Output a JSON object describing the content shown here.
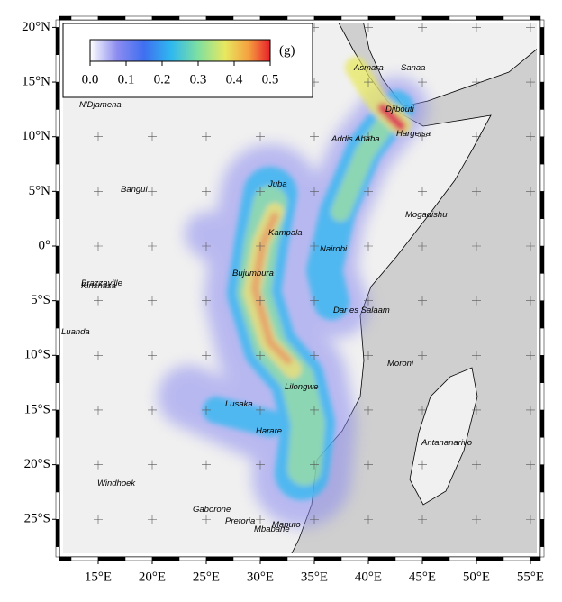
{
  "map": {
    "lat_ticks": [
      {
        "value": 20,
        "label": "20°N"
      },
      {
        "value": 15,
        "label": "15°N"
      },
      {
        "value": 10,
        "label": "10°N"
      },
      {
        "value": 5,
        "label": "5°N"
      },
      {
        "value": 0,
        "label": "0°"
      },
      {
        "value": -5,
        "label": "5°S"
      },
      {
        "value": -10,
        "label": "10°S"
      },
      {
        "value": -15,
        "label": "15°S"
      },
      {
        "value": -20,
        "label": "20°S"
      },
      {
        "value": -25,
        "label": "25°S"
      }
    ],
    "lon_ticks": [
      {
        "value": 15,
        "label": "15°E"
      },
      {
        "value": 20,
        "label": "20°E"
      },
      {
        "value": 25,
        "label": "25°E"
      },
      {
        "value": 30,
        "label": "30°E"
      },
      {
        "value": 35,
        "label": "35°E"
      },
      {
        "value": 40,
        "label": "40°E"
      },
      {
        "value": 45,
        "label": "45°E"
      },
      {
        "value": 50,
        "label": "50°E"
      },
      {
        "value": 55,
        "label": "55°E"
      }
    ],
    "colorbar": {
      "unit": "(g)",
      "lim": [
        0,
        0.5
      ],
      "ticks": [
        {
          "value": 0,
          "label": "0.0"
        },
        0.1,
        0.2,
        0.3,
        0.4,
        0.5
      ]
    },
    "cities": [
      "Asmara",
      "Sanaa",
      "N'Djamena",
      "Djibouti",
      "Hargeisa",
      "Addis Ababa",
      "Juba",
      "Bangui",
      "Mogadishu",
      "Kampala",
      "Nairobi",
      "Bujumbura",
      "Brazzaville",
      "Kinshasa",
      "Dar es Salaam",
      "Luanda",
      "Moroni",
      "Lilongwe",
      "Lusaka",
      "Harare",
      "Antananarivo",
      "Windhoek",
      "Gaborone",
      "Pretoria",
      "Maputo",
      "Mbabane"
    ]
  }
}
